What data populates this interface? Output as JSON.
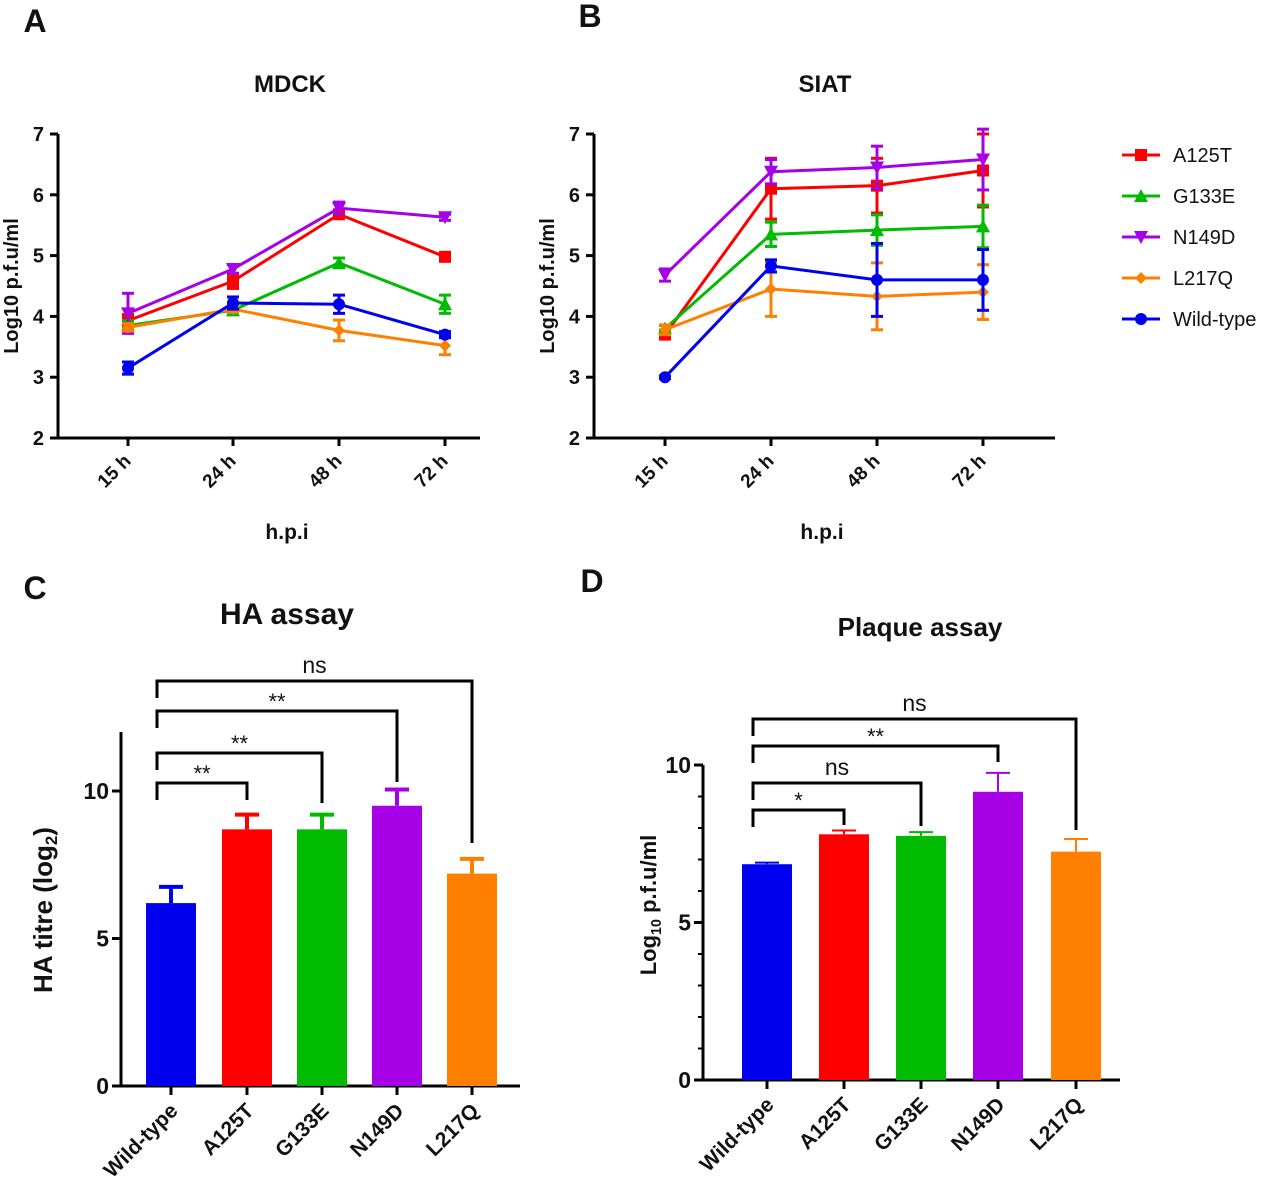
{
  "series_colors": {
    "A125T": "#ff0000",
    "G133E": "#00bb00",
    "N149D": "#a600e6",
    "L217Q": "#ff8000",
    "Wild-type": "#0000ee"
  },
  "series_markers": {
    "A125T": "square",
    "G133E": "triangle-up",
    "N149D": "triangle-down",
    "L217Q": "diamond",
    "Wild-type": "circle"
  },
  "legend": {
    "placement": "right",
    "entries": [
      "A125T",
      "G133E",
      "N149D",
      "L217Q",
      "Wild-type"
    ]
  },
  "chart_data": [
    {
      "panel": "A",
      "type": "line",
      "title": "MDCK",
      "xlabel": "h.p.i",
      "ylabel": "Log10 p.f.u/ml",
      "categories": [
        "15 h",
        "24 h",
        "48 h",
        "72 h"
      ],
      "ylim": [
        2,
        7
      ],
      "yticks": [
        2,
        3,
        4,
        5,
        6,
        7
      ],
      "series": [
        {
          "name": "A125T",
          "values": [
            3.93,
            4.58,
            5.68,
            4.98
          ],
          "errors": [
            0.1,
            0.12,
            0.07,
            0.05
          ]
        },
        {
          "name": "G133E",
          "values": [
            3.85,
            4.1,
            4.88,
            4.2
          ],
          "errors": [
            0.08,
            0.06,
            0.08,
            0.15
          ]
        },
        {
          "name": "N149D",
          "values": [
            4.05,
            4.78,
            5.78,
            5.63
          ],
          "errors": [
            0.33,
            0.07,
            0.1,
            0.05
          ]
        },
        {
          "name": "L217Q",
          "values": [
            3.82,
            4.12,
            3.77,
            3.52
          ],
          "errors": [
            0.06,
            0.05,
            0.17,
            0.15
          ]
        },
        {
          "name": "Wild-type",
          "values": [
            3.15,
            4.22,
            4.2,
            3.7
          ],
          "errors": [
            0.1,
            0.1,
            0.15,
            0.05
          ]
        }
      ]
    },
    {
      "panel": "B",
      "type": "line",
      "title": "SIAT",
      "xlabel": "h.p.i",
      "ylabel": "Log10 p.f.u/ml",
      "categories": [
        "15 h",
        "24 h",
        "48 h",
        "72 h"
      ],
      "ylim": [
        2,
        7
      ],
      "yticks": [
        2,
        3,
        4,
        5,
        6,
        7
      ],
      "series": [
        {
          "name": "A125T",
          "values": [
            3.7,
            6.1,
            6.15,
            6.4
          ],
          "errors": [
            0.05,
            0.5,
            0.45,
            0.6
          ]
        },
        {
          "name": "G133E",
          "values": [
            3.8,
            5.35,
            5.42,
            5.48
          ],
          "errors": [
            0.05,
            0.2,
            0.25,
            0.35
          ]
        },
        {
          "name": "N149D",
          "values": [
            4.68,
            6.38,
            6.45,
            6.58
          ],
          "errors": [
            0.1,
            0.2,
            0.35,
            0.5
          ]
        },
        {
          "name": "L217Q",
          "values": [
            3.78,
            4.45,
            4.33,
            4.4
          ],
          "errors": [
            0.08,
            0.45,
            0.55,
            0.45
          ]
        },
        {
          "name": "Wild-type",
          "values": [
            3.0,
            4.83,
            4.6,
            4.6
          ],
          "errors": [
            0.02,
            0.1,
            0.6,
            0.5
          ]
        }
      ]
    },
    {
      "panel": "C",
      "type": "bar",
      "title": "HA assay",
      "ylabel": "HA titre (log2)",
      "categories": [
        "Wild-type",
        "A125T",
        "G133E",
        "N149D",
        "L217Q"
      ],
      "values": [
        6.2,
        8.7,
        8.7,
        9.5,
        7.2
      ],
      "errors": [
        0.55,
        0.5,
        0.5,
        0.55,
        0.5
      ],
      "ylim": [
        0,
        12
      ],
      "yticks": [
        0,
        5,
        10
      ],
      "significance": [
        {
          "from": "Wild-type",
          "to": "A125T",
          "label": "**"
        },
        {
          "from": "Wild-type",
          "to": "G133E",
          "label": "**"
        },
        {
          "from": "Wild-type",
          "to": "N149D",
          "label": "**"
        },
        {
          "from": "Wild-type",
          "to": "L217Q",
          "label": "ns"
        }
      ]
    },
    {
      "panel": "D",
      "type": "bar",
      "title": "Plaque assay",
      "ylabel": "Log10 p.f.u/ml",
      "categories": [
        "Wild-type",
        "A125T",
        "G133E",
        "N149D",
        "L217Q"
      ],
      "values": [
        6.85,
        7.8,
        7.75,
        9.15,
        7.25
      ],
      "errors": [
        0.05,
        0.12,
        0.12,
        0.6,
        0.4
      ],
      "ylim": [
        0,
        10
      ],
      "yticks": [
        0,
        5,
        10
      ],
      "significance": [
        {
          "from": "Wild-type",
          "to": "A125T",
          "label": "*"
        },
        {
          "from": "Wild-type",
          "to": "G133E",
          "label": "ns"
        },
        {
          "from": "Wild-type",
          "to": "N149D",
          "label": "**"
        },
        {
          "from": "Wild-type",
          "to": "L217Q",
          "label": "ns"
        }
      ]
    }
  ]
}
